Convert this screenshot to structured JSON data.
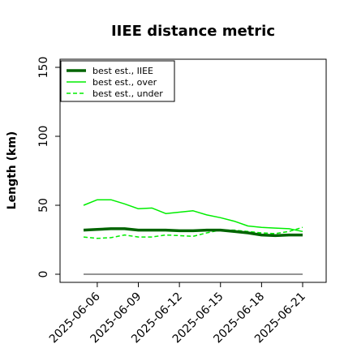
{
  "chart_data": {
    "type": "line",
    "title": "IIEE distance metric",
    "xlabel": "",
    "ylabel": "Length (km)",
    "ylim": [
      0,
      150
    ],
    "yticks": [
      0,
      50,
      100,
      150
    ],
    "x": [
      "2025-06-05",
      "2025-06-06",
      "2025-06-07",
      "2025-06-08",
      "2025-06-09",
      "2025-06-10",
      "2025-06-11",
      "2025-06-12",
      "2025-06-13",
      "2025-06-14",
      "2025-06-15",
      "2025-06-16",
      "2025-06-17",
      "2025-06-18",
      "2025-06-19",
      "2025-06-20",
      "2025-06-21"
    ],
    "xticks": [
      "2025-06-06",
      "2025-06-09",
      "2025-06-12",
      "2025-06-15",
      "2025-06-18",
      "2025-06-21"
    ],
    "reference_line": 0,
    "legend_position": "top-left",
    "series": [
      {
        "name": "best est., IIEE",
        "color": "#006400",
        "style": "solid-thick",
        "values": [
          32,
          32.5,
          33,
          33,
          32,
          32,
          32,
          31.5,
          31.5,
          32,
          32,
          31,
          30,
          28.5,
          28,
          28.5,
          28.5
        ]
      },
      {
        "name": "best est., over",
        "color": "#00ee00",
        "style": "solid",
        "values": [
          50,
          54,
          54,
          51,
          47.5,
          48,
          44,
          45,
          46,
          43,
          41,
          38.5,
          35,
          34,
          33.5,
          33,
          31
        ]
      },
      {
        "name": "best est., under",
        "color": "#00ee00",
        "style": "dashed",
        "values": [
          27,
          26,
          26.5,
          28.5,
          27,
          27,
          28.5,
          28,
          27.5,
          30,
          32,
          32,
          31,
          30,
          29.5,
          31,
          34
        ]
      }
    ]
  }
}
